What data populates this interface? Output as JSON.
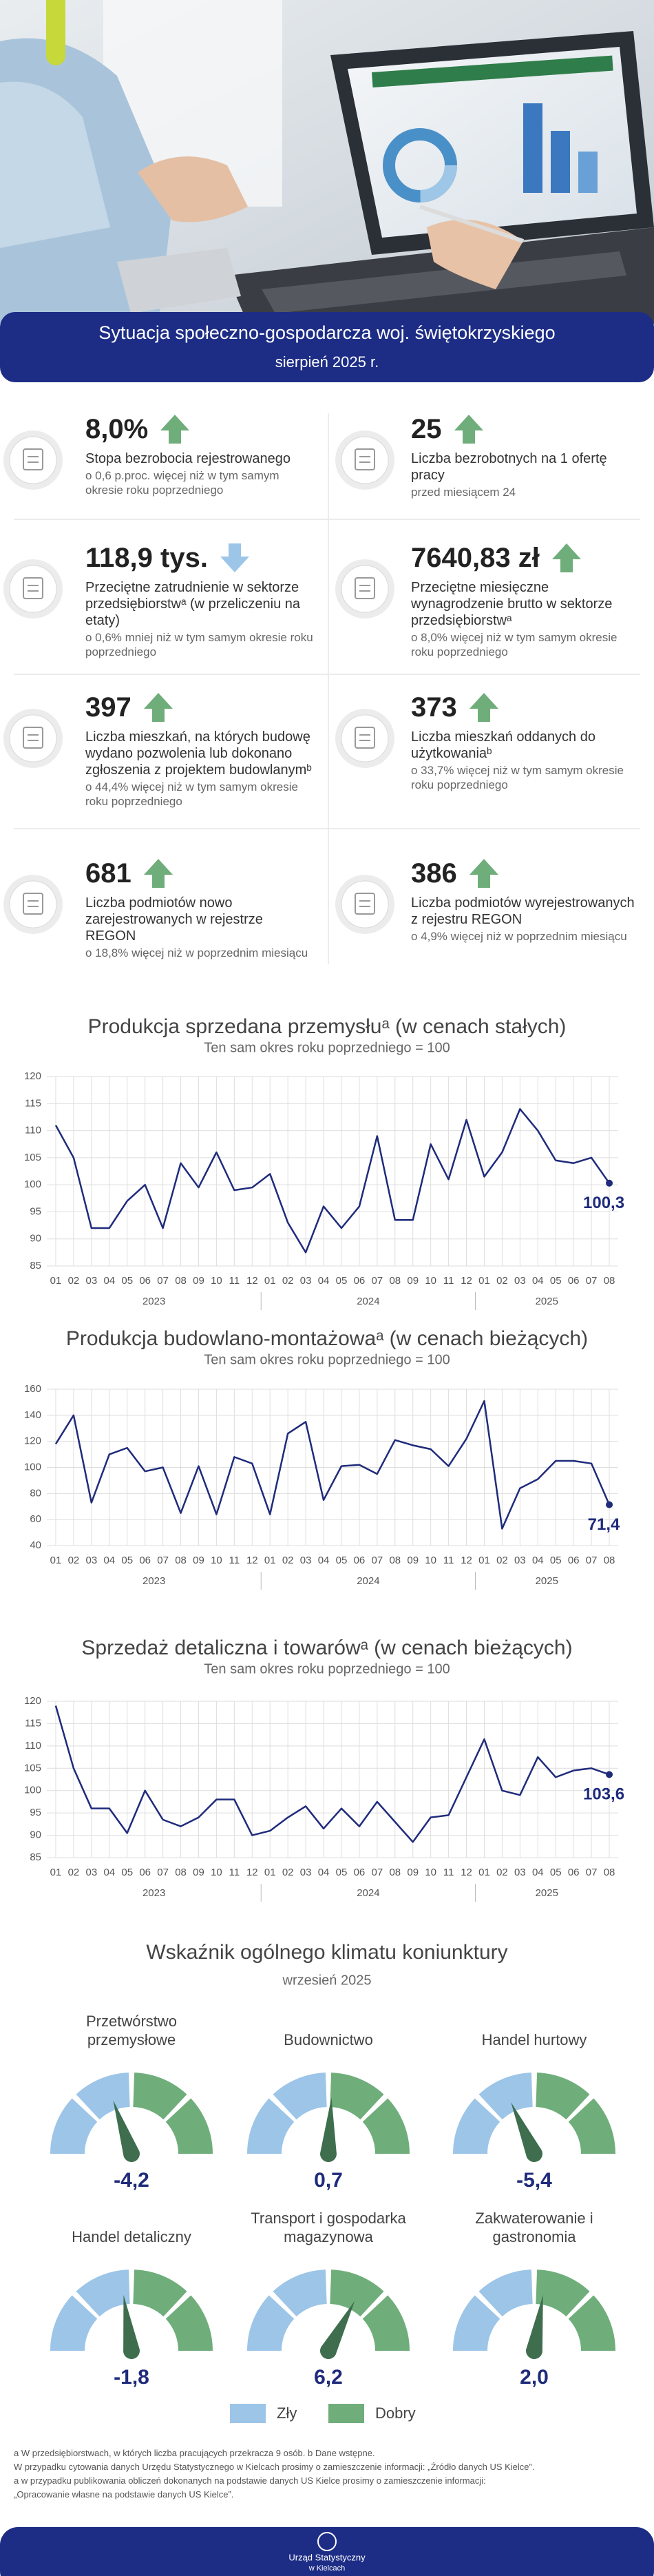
{
  "header": {
    "title": "Sytuacja społeczno-gospodarcza woj. świętokrzyskiego",
    "subtitle": "sierpień 2025 r."
  },
  "arrow_colors": {
    "up": "#6fae7b",
    "down": "#9cc5e8"
  },
  "indicators": [
    {
      "value": "8,0%",
      "arrow": "up",
      "description": "Stopa bezrobocia rejestrowanego",
      "note": "o 0,6 p.proc. więcej niż w tym samym okresie roku poprzedniego"
    },
    {
      "value": "25",
      "arrow": "up",
      "description": "Liczba bezrobotnych na 1 ofertę pracy",
      "note": "przed miesiącem 24"
    },
    {
      "value": "118,9 tys.",
      "arrow": "down",
      "description": "Przeciętne zatrudnienie w sektorze przedsiębiorstwᵃ (w przeliczeniu na etaty)",
      "note": "o 0,6% mniej niż w tym samym okresie roku poprzedniego"
    },
    {
      "value": "7640,83 zł",
      "arrow": "up",
      "description": "Przeciętne miesięczne wynagrodzenie brutto w sektorze przedsiębiorstwᵃ",
      "note": "o 8,0% więcej niż w tym samym okresie roku poprzedniego"
    },
    {
      "value": "397",
      "arrow": "up",
      "description": "Liczba mieszkań, na których budowę wydano pozwolenia lub dokonano zgłoszenia z projektem budowlanymᵇ",
      "note": "o 44,4% więcej niż w tym samym okresie roku poprzedniego"
    },
    {
      "value": "373",
      "arrow": "up",
      "description": "Liczba mieszkań oddanych do użytkowaniaᵇ",
      "note": "o 33,7% więcej niż w tym samym okresie roku poprzedniego"
    },
    {
      "value": "681",
      "arrow": "up",
      "description": "Liczba podmiotów nowo zarejestrowanych w rejestrze REGON",
      "note": "o 18,8% więcej niż w poprzednim miesiącu"
    },
    {
      "value": "386",
      "arrow": "up",
      "description": "Liczba podmiotów wyrejestrowanych z rejestru REGON",
      "note": "o 4,9% więcej niż w poprzednim miesiącu"
    }
  ],
  "chart_data": [
    {
      "type": "line",
      "title": "Produkcja sprzedana przemysłuᵃ (w cenach stałych)",
      "subtitle": "Ten sam okres roku poprzedniego = 100",
      "categories": [
        "01",
        "02",
        "03",
        "04",
        "05",
        "06",
        "07",
        "08",
        "09",
        "10",
        "11",
        "12",
        "01",
        "02",
        "03",
        "04",
        "05",
        "06",
        "07",
        "08",
        "09",
        "10",
        "11",
        "12",
        "01",
        "02",
        "03",
        "04",
        "05",
        "06",
        "07",
        "08"
      ],
      "groups": [
        "2023",
        "2024",
        "2025"
      ],
      "values": [
        111,
        105,
        92,
        92,
        97,
        100,
        92,
        104,
        99.5,
        106,
        99,
        99.5,
        102,
        93,
        87.5,
        96,
        92,
        96,
        109,
        93.5,
        93.5,
        107.5,
        101,
        112,
        101.5,
        106,
        114,
        110,
        104.5,
        104,
        105,
        100.3
      ],
      "value_labels": [
        null,
        null,
        null,
        null,
        null,
        null,
        null,
        null,
        null,
        null,
        null,
        null,
        null,
        null,
        null,
        null,
        null,
        null,
        null,
        null,
        null,
        null,
        null,
        null,
        null,
        null,
        null,
        null,
        null,
        null,
        null,
        "100,3"
      ],
      "color": "#1f2b7b",
      "ylim": [
        85,
        120
      ],
      "yticks": [
        85,
        90,
        95,
        100,
        105,
        110,
        115,
        120
      ],
      "grid": true
    },
    {
      "type": "line",
      "title": "Produkcja budowlano-montażowaᵃ (w cenach bieżących)",
      "subtitle": "Ten sam okres roku poprzedniego = 100",
      "categories": [
        "01",
        "02",
        "03",
        "04",
        "05",
        "06",
        "07",
        "08",
        "09",
        "10",
        "11",
        "12",
        "01",
        "02",
        "03",
        "04",
        "05",
        "06",
        "07",
        "08",
        "09",
        "10",
        "11",
        "12",
        "01",
        "02",
        "03",
        "04",
        "05",
        "06",
        "07",
        "08"
      ],
      "groups": [
        "2023",
        "2024",
        "2025"
      ],
      "values": [
        118,
        140,
        73,
        110,
        115,
        97,
        100,
        65,
        101,
        64,
        108,
        103,
        64,
        126,
        135,
        75,
        101,
        102,
        95,
        121,
        117,
        114,
        101,
        122,
        151,
        53,
        84,
        91,
        105,
        105,
        103,
        71.4
      ],
      "value_labels": [
        null,
        null,
        null,
        null,
        null,
        null,
        null,
        null,
        null,
        null,
        null,
        null,
        null,
        null,
        null,
        null,
        null,
        null,
        null,
        null,
        null,
        null,
        null,
        null,
        null,
        null,
        null,
        null,
        null,
        null,
        null,
        "71,4"
      ],
      "color": "#1f2b7b",
      "ylim": [
        40,
        160
      ],
      "yticks": [
        40,
        60,
        80,
        100,
        120,
        140,
        160
      ],
      "grid": true
    },
    {
      "type": "line",
      "title": "Sprzedaż detaliczna i towarówᵃ (w cenach bieżących)",
      "subtitle": "Ten sam okres roku poprzedniego = 100",
      "categories": [
        "01",
        "02",
        "03",
        "04",
        "05",
        "06",
        "07",
        "08",
        "09",
        "10",
        "11",
        "12",
        "01",
        "02",
        "03",
        "04",
        "05",
        "06",
        "07",
        "08",
        "09",
        "10",
        "11",
        "12",
        "01",
        "02",
        "03",
        "04",
        "05",
        "06",
        "07",
        "08"
      ],
      "groups": [
        "2023",
        "2024",
        "2025"
      ],
      "values": [
        119,
        105,
        96,
        96,
        90.5,
        100,
        93.5,
        92,
        94,
        98,
        98,
        90,
        91,
        94,
        96.5,
        91.5,
        96,
        92,
        97.5,
        93,
        88.5,
        94,
        94.5,
        103,
        111.5,
        100,
        99,
        107.5,
        103,
        104.5,
        105,
        103.6
      ],
      "value_labels": [
        null,
        null,
        null,
        null,
        null,
        null,
        null,
        null,
        null,
        null,
        null,
        null,
        null,
        null,
        null,
        null,
        null,
        null,
        null,
        null,
        null,
        null,
        null,
        null,
        null,
        null,
        null,
        null,
        null,
        null,
        null,
        "103,6"
      ],
      "color": "#1f2b7b",
      "ylim": [
        85,
        120
      ],
      "yticks": [
        85,
        90,
        95,
        100,
        105,
        110,
        115,
        120
      ],
      "grid": true
    },
    {
      "type": "gauge",
      "title": "Wskaźnik ogólnego klimatu koniunktury",
      "subtitle": "wrzesień 2025",
      "categories": [
        "Przetwórstwo przemysłowe",
        "Budownictwo",
        "Handel hurtowy",
        "Handel detaliczny",
        "Transport i gospodarka magazynowa",
        "Zakwaterowanie i gastronomia"
      ],
      "values": [
        -4.2,
        0.7,
        -5.4,
        -1.8,
        6.2,
        2.0
      ],
      "value_labels": [
        "-4,2",
        "0,7",
        "-5,4",
        "-1,8",
        "6,2",
        "2,0"
      ],
      "ylim": [
        -20,
        20
      ],
      "legend": [
        {
          "name": "Zły",
          "color": "#9cc5e8"
        },
        {
          "name": "Dobry",
          "color": "#6fae7b"
        }
      ]
    }
  ],
  "footnotes": [
    "a W przedsiębiorstwach, w których liczba pracujących przekracza 9 osób. b Dane wstępne.",
    "W przypadku cytowania danych Urzędu Statystycznego w Kielcach prosimy o zamieszczenie informacji: „Źródło danych US Kielce”.",
    "a w przypadku publikowania obliczeń dokonanych na podstawie danych US Kielce prosimy o zamieszczenie informacji:",
    "„Opracowanie własne na podstawie danych US Kielce”."
  ],
  "footer": {
    "line1": "Urząd Statystyczny",
    "line2": "w Kielcach"
  }
}
